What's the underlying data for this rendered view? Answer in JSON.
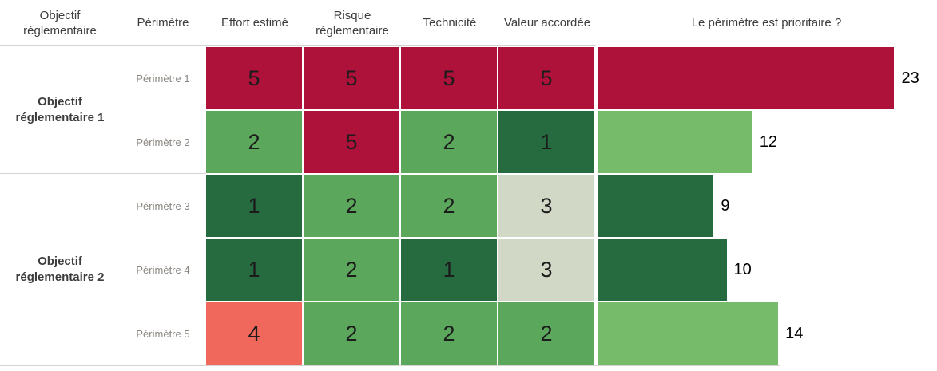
{
  "header": {
    "objectif": "Objectif réglementaire",
    "perimetre": "Périmètre",
    "effort": "Effort estimé",
    "risque": "Risque réglementaire",
    "technicite": "Technicité",
    "valeur": "Valeur accordée",
    "priorite": "Le périmètre est prioritaire ?"
  },
  "groups": [
    {
      "label": "Objectif réglementaire 1",
      "rows": [
        {
          "label": "Périmètre 1",
          "values": [
            5,
            5,
            5,
            5
          ],
          "total": 23
        },
        {
          "label": "Périmètre 2",
          "values": [
            2,
            5,
            2,
            1
          ],
          "total": 12
        }
      ]
    },
    {
      "label": "Objectif réglementaire 2",
      "rows": [
        {
          "label": "Périmètre 3",
          "values": [
            1,
            2,
            2,
            3
          ],
          "total": 9
        },
        {
          "label": "Périmètre 4",
          "values": [
            1,
            2,
            1,
            3
          ],
          "total": 10
        },
        {
          "label": "Périmètre 5",
          "values": [
            4,
            2,
            2,
            2
          ],
          "total": 14
        }
      ]
    }
  ],
  "colors": {
    "scale": {
      "1": "#266A40",
      "2": "#5BA85C",
      "3": "#D1D8C6",
      "4": "#F0685C",
      "5": "#AE123A"
    },
    "bar": {
      "9": "#266A40",
      "10": "#266A40",
      "12": "#75BB69",
      "14": "#75BB69",
      "23": "#AE123A"
    },
    "separator": "#D4D4D4"
  },
  "chart_data": [
    {
      "type": "heatmap",
      "title": "",
      "row_groups": [
        "Objectif réglementaire 1",
        "Objectif réglementaire 1",
        "Objectif réglementaire 2",
        "Objectif réglementaire 2",
        "Objectif réglementaire 2"
      ],
      "rows": [
        "Périmètre 1",
        "Périmètre 2",
        "Périmètre 3",
        "Périmètre 4",
        "Périmètre 5"
      ],
      "columns": [
        "Effort estimé",
        "Risque réglementaire",
        "Technicité",
        "Valeur accordée"
      ],
      "values": [
        [
          5,
          5,
          5,
          5
        ],
        [
          2,
          5,
          2,
          1
        ],
        [
          1,
          2,
          2,
          3
        ],
        [
          1,
          2,
          1,
          3
        ],
        [
          4,
          2,
          2,
          2
        ]
      ],
      "color_scale": "diverging red-green: 1 = dark green (#266A40), 2 = green (#5BA85C), 3 = pale sage (#D1D8C6), 4 = salmon (#F0685C), 5 = crimson (#AE123A)",
      "legend_position": "none",
      "grid": false
    },
    {
      "type": "bar",
      "orientation": "horizontal",
      "title": "Le périmètre est prioritaire ?",
      "categories": [
        "Périmètre 1",
        "Périmètre 2",
        "Périmètre 3",
        "Périmètre 4",
        "Périmètre 5"
      ],
      "values": [
        23,
        12,
        9,
        10,
        14
      ],
      "data_labels": [
        "23",
        "12",
        "9",
        "10",
        "14"
      ],
      "xlabel": "",
      "ylabel": "",
      "xlim": [
        0,
        23
      ],
      "bar_max_pct": 87,
      "grid": false,
      "legend_position": "none"
    }
  ]
}
